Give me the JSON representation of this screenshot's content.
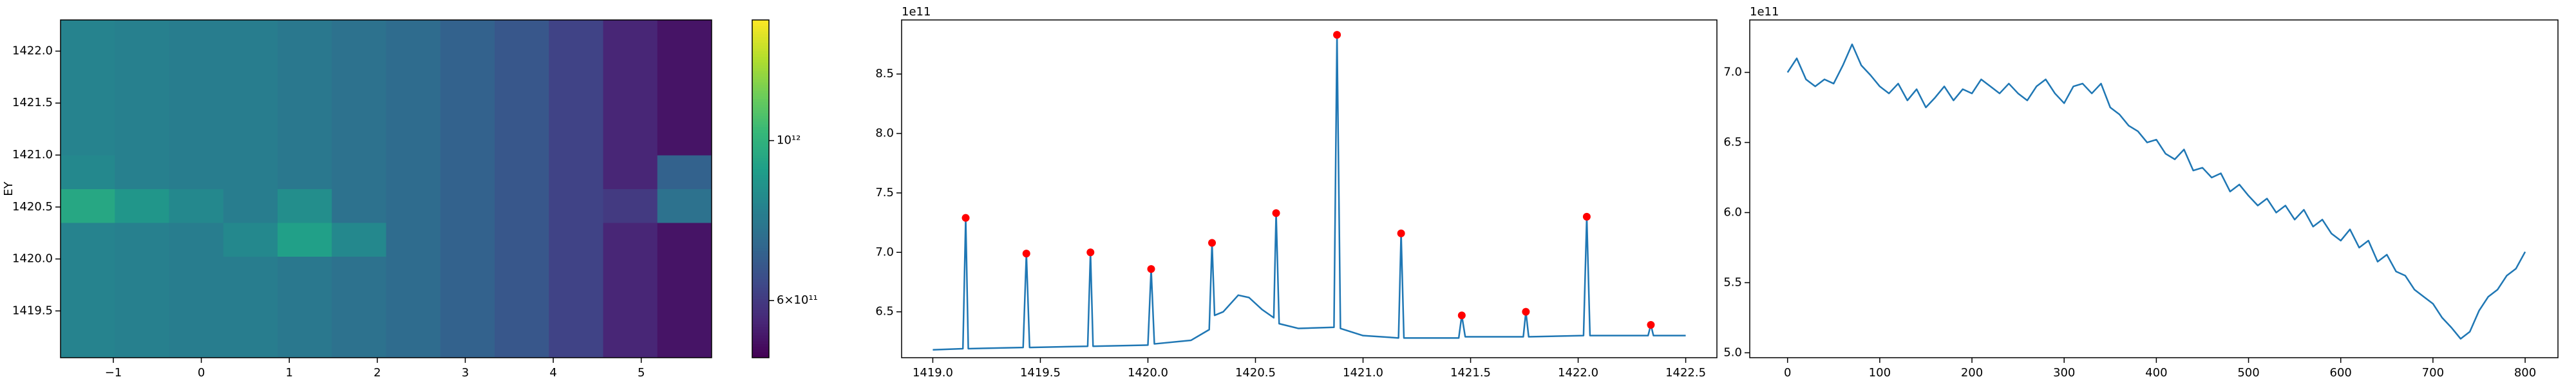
{
  "chart_data": [
    {
      "type": "heatmap",
      "ylabel": "EY",
      "x_edges": [
        -1.6,
        -0.983,
        -0.367,
        0.25,
        0.867,
        1.483,
        2.1,
        2.717,
        3.333,
        3.95,
        4.567,
        5.183,
        5.8
      ],
      "y_edges": [
        1419.05,
        1419.375,
        1419.7,
        1420.025,
        1420.35,
        1420.675,
        1421.0,
        1421.325,
        1421.65,
        1421.975,
        1422.3
      ],
      "z": [
        [
          810000000000.0,
          800000000000.0,
          790000000000.0,
          790000000000.0,
          770000000000.0,
          750000000000.0,
          730000000000.0,
          700000000000.0,
          670000000000.0,
          620000000000.0,
          560000000000.0,
          530000000000.0
        ],
        [
          810000000000.0,
          800000000000.0,
          790000000000.0,
          790000000000.0,
          770000000000.0,
          750000000000.0,
          730000000000.0,
          700000000000.0,
          670000000000.0,
          620000000000.0,
          560000000000.0,
          530000000000.0
        ],
        [
          810000000000.0,
          800000000000.0,
          790000000000.0,
          790000000000.0,
          770000000000.0,
          750000000000.0,
          730000000000.0,
          700000000000.0,
          670000000000.0,
          620000000000.0,
          560000000000.0,
          530000000000.0
        ],
        [
          810000000000.0,
          800000000000.0,
          790000000000.0,
          830000000000.0,
          920000000000.0,
          830000000000.0,
          730000000000.0,
          700000000000.0,
          670000000000.0,
          620000000000.0,
          560000000000.0,
          530000000000.0
        ],
        [
          950000000000.0,
          880000000000.0,
          830000000000.0,
          790000000000.0,
          850000000000.0,
          750000000000.0,
          730000000000.0,
          700000000000.0,
          670000000000.0,
          620000000000.0,
          600000000000.0,
          750000000000.0
        ],
        [
          830000000000.0,
          800000000000.0,
          790000000000.0,
          790000000000.0,
          770000000000.0,
          750000000000.0,
          730000000000.0,
          700000000000.0,
          670000000000.0,
          620000000000.0,
          560000000000.0,
          700000000000.0
        ],
        [
          810000000000.0,
          800000000000.0,
          790000000000.0,
          790000000000.0,
          770000000000.0,
          750000000000.0,
          730000000000.0,
          700000000000.0,
          670000000000.0,
          620000000000.0,
          560000000000.0,
          530000000000.0
        ],
        [
          810000000000.0,
          800000000000.0,
          790000000000.0,
          790000000000.0,
          770000000000.0,
          750000000000.0,
          730000000000.0,
          700000000000.0,
          670000000000.0,
          620000000000.0,
          560000000000.0,
          530000000000.0
        ],
        [
          810000000000.0,
          800000000000.0,
          790000000000.0,
          790000000000.0,
          770000000000.0,
          750000000000.0,
          730000000000.0,
          700000000000.0,
          670000000000.0,
          620000000000.0,
          560000000000.0,
          530000000000.0
        ],
        [
          810000000000.0,
          800000000000.0,
          790000000000.0,
          790000000000.0,
          770000000000.0,
          750000000000.0,
          730000000000.0,
          700000000000.0,
          670000000000.0,
          620000000000.0,
          560000000000.0,
          530000000000.0
        ]
      ],
      "xlim": [
        -1.6,
        5.8
      ],
      "ylim": [
        1419.05,
        1422.3
      ],
      "xticks": [
        {
          "value": -1,
          "label": "−1"
        },
        0,
        1,
        2,
        3,
        4,
        5
      ],
      "yticks": [
        1419.5,
        {
          "value": 1420.0,
          "label": "1420.0"
        },
        1420.5,
        {
          "value": 1421.0,
          "label": "1421.0"
        },
        1421.5,
        {
          "value": 1422.0,
          "label": "1422.0"
        }
      ],
      "colorbar": {
        "scale": "log",
        "colormap": "viridis",
        "clim": [
          500000000000.0,
          1470000000000.0
        ],
        "ticks": [
          {
            "value": 1000000000000.0,
            "label": "10¹²"
          },
          {
            "value": 600000000000.0,
            "label": "6×10¹¹"
          }
        ]
      }
    },
    {
      "type": "line",
      "y_offset_text": "1e11",
      "series": [
        {
          "color": "#1f77b4",
          "x": [
            1419.0,
            1419.14,
            1419.153,
            1419.165,
            1419.42,
            1419.435,
            1419.45,
            1419.72,
            1419.733,
            1419.745,
            1420.0,
            1420.015,
            1420.03,
            1420.2,
            1420.285,
            1420.298,
            1420.31,
            1420.35,
            1420.42,
            1420.47,
            1420.53,
            1420.585,
            1420.596,
            1420.61,
            1420.7,
            1420.865,
            1420.879,
            1420.895,
            1421.0,
            1421.165,
            1421.177,
            1421.19,
            1421.445,
            1421.459,
            1421.475,
            1421.745,
            1421.757,
            1421.77,
            1422.025,
            1422.04,
            1422.055,
            1422.325,
            1422.338,
            1422.35,
            1422.5
          ],
          "values": [
            6.18,
            6.19,
            7.29,
            6.19,
            6.2,
            6.99,
            6.2,
            6.21,
            7.0,
            6.21,
            6.22,
            6.86,
            6.23,
            6.26,
            6.35,
            7.08,
            6.47,
            6.5,
            6.64,
            6.62,
            6.52,
            6.45,
            7.33,
            6.4,
            6.36,
            6.37,
            8.83,
            6.36,
            6.3,
            6.28,
            7.16,
            6.28,
            6.28,
            6.47,
            6.29,
            6.29,
            6.5,
            6.29,
            6.3,
            7.3,
            6.3,
            6.3,
            6.39,
            6.3,
            6.3
          ]
        },
        {
          "color": "#ff0000",
          "marker": "o",
          "linestyle": "none",
          "x": [
            1419.153,
            1419.435,
            1419.733,
            1420.015,
            1420.298,
            1420.596,
            1420.879,
            1421.177,
            1421.459,
            1421.757,
            1422.04,
            1422.338
          ],
          "values": [
            7.29,
            6.99,
            7.0,
            6.86,
            7.08,
            7.33,
            8.83,
            7.16,
            6.47,
            6.5,
            7.3,
            6.39
          ]
        }
      ],
      "xlim": [
        1418.855,
        1422.645
      ],
      "ylim": [
        6.114,
        8.955
      ],
      "xticks": [
        {
          "value": 1419.0,
          "label": "1419.0"
        },
        1419.5,
        {
          "value": 1420.0,
          "label": "1420.0"
        },
        1420.5,
        {
          "value": 1421.0,
          "label": "1421.0"
        },
        1421.5,
        {
          "value": 1422.0,
          "label": "1422.0"
        },
        1422.5
      ],
      "yticks": [
        6.5,
        {
          "value": 7.0,
          "label": "7.0"
        },
        7.5,
        {
          "value": 8.0,
          "label": "8.0"
        },
        8.5
      ]
    },
    {
      "type": "line",
      "y_offset_text": "1e11",
      "series": [
        {
          "color": "#1f77b4",
          "x": [
            0,
            10,
            20,
            30,
            40,
            50,
            60,
            70,
            80,
            90,
            100,
            110,
            120,
            130,
            140,
            150,
            160,
            170,
            180,
            190,
            200,
            210,
            220,
            230,
            240,
            250,
            260,
            270,
            280,
            290,
            300,
            310,
            320,
            330,
            340,
            350,
            360,
            370,
            380,
            390,
            400,
            410,
            420,
            430,
            440,
            450,
            460,
            470,
            480,
            490,
            500,
            510,
            520,
            530,
            540,
            550,
            560,
            570,
            580,
            590,
            600,
            610,
            620,
            630,
            640,
            650,
            660,
            670,
            680,
            690,
            700,
            710,
            720,
            730,
            740,
            750,
            760,
            770,
            780,
            790,
            800
          ],
          "values": [
            7.0,
            7.1,
            6.95,
            6.9,
            6.95,
            6.92,
            7.05,
            7.2,
            7.05,
            6.98,
            6.9,
            6.85,
            6.92,
            6.8,
            6.88,
            6.75,
            6.82,
            6.9,
            6.8,
            6.88,
            6.85,
            6.95,
            6.9,
            6.85,
            6.92,
            6.85,
            6.8,
            6.9,
            6.95,
            6.85,
            6.78,
            6.9,
            6.92,
            6.85,
            6.92,
            6.75,
            6.7,
            6.62,
            6.58,
            6.5,
            6.52,
            6.42,
            6.38,
            6.45,
            6.3,
            6.32,
            6.25,
            6.28,
            6.15,
            6.2,
            6.12,
            6.05,
            6.1,
            6.0,
            6.05,
            5.95,
            6.02,
            5.9,
            5.95,
            5.85,
            5.8,
            5.88,
            5.75,
            5.8,
            5.65,
            5.7,
            5.58,
            5.55,
            5.45,
            5.4,
            5.35,
            5.25,
            5.18,
            5.1,
            5.15,
            5.3,
            5.4,
            5.45,
            5.55,
            5.6,
            5.72
          ]
        }
      ],
      "xlim": [
        -41,
        835.6
      ],
      "ylim": [
        4.965,
        7.374
      ],
      "xticks": [
        0,
        100,
        200,
        300,
        400,
        500,
        600,
        700,
        800
      ],
      "yticks": [
        {
          "value": 5.0,
          "label": "5.0"
        },
        5.5,
        {
          "value": 6.0,
          "label": "6.0"
        },
        6.5,
        {
          "value": 7.0,
          "label": "7.0"
        }
      ]
    }
  ]
}
